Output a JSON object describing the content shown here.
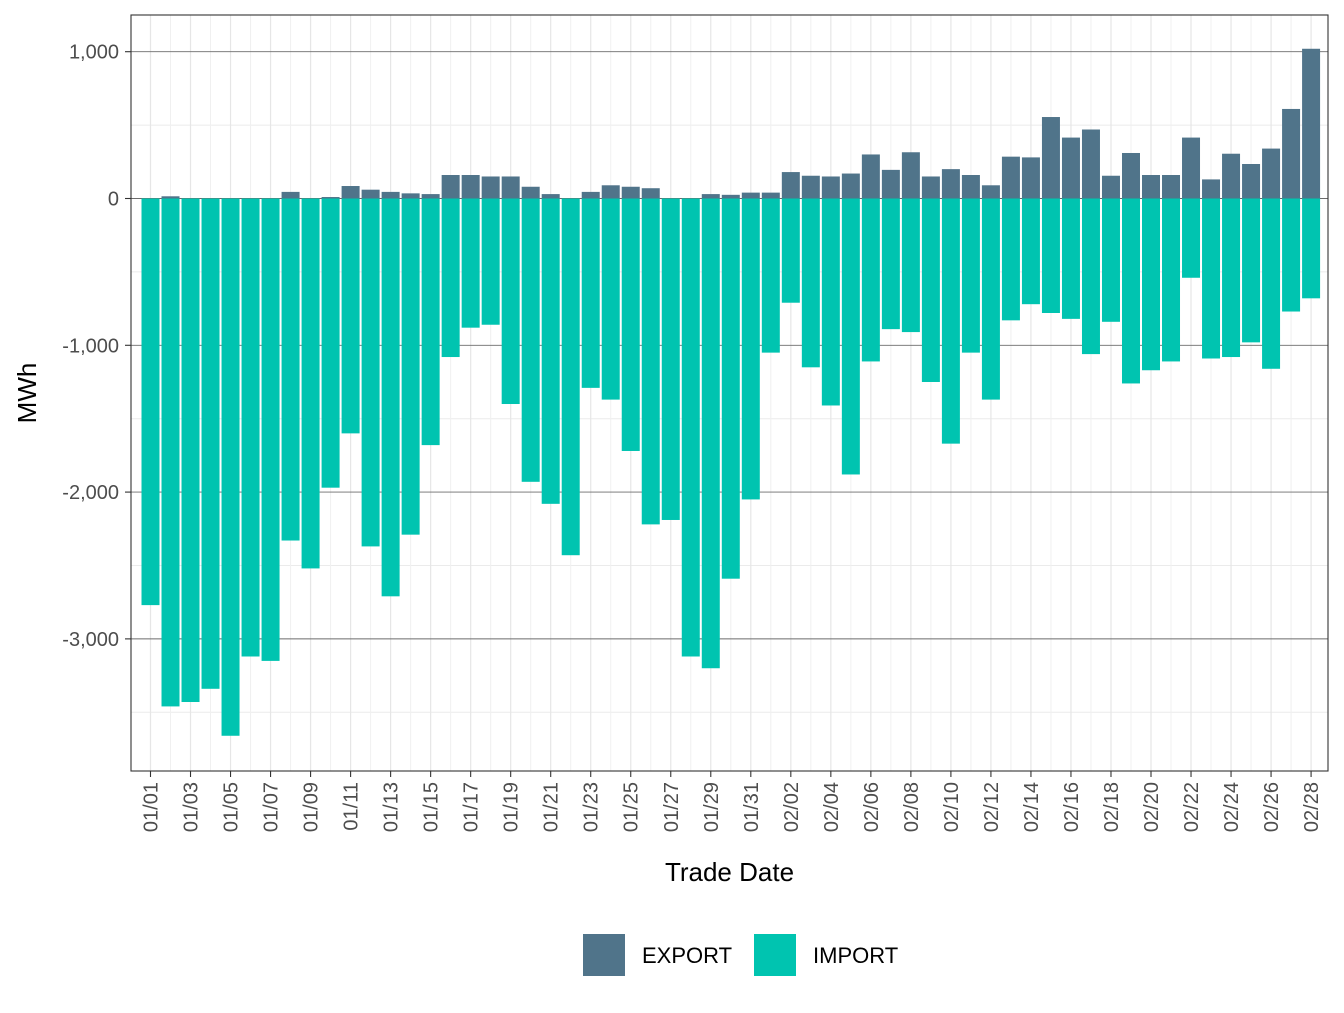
{
  "chart_data": {
    "type": "bar",
    "stacked": true,
    "title": "",
    "xlabel": "Trade Date",
    "ylabel": "MWh",
    "ylim": [
      -3900,
      1250
    ],
    "yticks": [
      1000,
      0,
      -1000,
      -2000,
      -3000
    ],
    "ytick_labels": [
      "1,000",
      "0",
      "-1,000",
      "-2,000",
      "-3,000"
    ],
    "grid": true,
    "legend_position": "bottom",
    "categories": [
      "01/01",
      "01/02",
      "01/03",
      "01/04",
      "01/05",
      "01/06",
      "01/07",
      "01/08",
      "01/09",
      "01/10",
      "01/11",
      "01/12",
      "01/13",
      "01/14",
      "01/15",
      "01/16",
      "01/17",
      "01/18",
      "01/19",
      "01/20",
      "01/21",
      "01/22",
      "01/23",
      "01/24",
      "01/25",
      "01/26",
      "01/27",
      "01/28",
      "01/29",
      "01/30",
      "01/31",
      "02/01",
      "02/02",
      "02/03",
      "02/04",
      "02/05",
      "02/06",
      "02/07",
      "02/08",
      "02/09",
      "02/10",
      "02/11",
      "02/12",
      "02/13",
      "02/14",
      "02/15",
      "02/16",
      "02/17",
      "02/18",
      "02/19",
      "02/20",
      "02/21",
      "02/22",
      "02/23",
      "02/24",
      "02/25",
      "02/26",
      "02/27",
      "02/28"
    ],
    "xtick_labels": [
      "01/01",
      "01/03",
      "01/05",
      "01/07",
      "01/09",
      "01/11",
      "01/13",
      "01/15",
      "01/17",
      "01/19",
      "01/21",
      "01/23",
      "01/25",
      "01/27",
      "01/29",
      "01/31",
      "02/02",
      "02/04",
      "02/06",
      "02/08",
      "02/10",
      "02/12",
      "02/14",
      "02/16",
      "02/18",
      "02/20",
      "02/22",
      "02/24",
      "02/26",
      "02/28"
    ],
    "series": [
      {
        "name": "EXPORT",
        "color": "#50748a",
        "values": [
          0,
          15,
          0,
          0,
          0,
          0,
          0,
          45,
          0,
          10,
          85,
          60,
          45,
          35,
          30,
          160,
          160,
          150,
          150,
          80,
          30,
          0,
          45,
          90,
          80,
          70,
          0,
          0,
          30,
          25,
          40,
          40,
          180,
          155,
          150,
          170,
          300,
          195,
          315,
          150,
          200,
          160,
          90,
          285,
          280,
          555,
          415,
          470,
          155,
          310,
          160,
          160,
          415,
          130,
          305,
          235,
          340,
          610,
          1020
        ]
      },
      {
        "name": "IMPORT",
        "color": "#00c4b0",
        "values": [
          -2770,
          -3460,
          -3430,
          -3340,
          -3660,
          -3120,
          -3150,
          -2330,
          -2520,
          -1970,
          -1600,
          -2370,
          -2710,
          -2290,
          -1680,
          -1080,
          -880,
          -860,
          -1400,
          -1930,
          -2080,
          -2430,
          -1290,
          -1370,
          -1720,
          -2220,
          -2190,
          -3120,
          -3200,
          -2590,
          -2050,
          -1050,
          -710,
          -1150,
          -1410,
          -1880,
          -1110,
          -890,
          -910,
          -1250,
          -1670,
          -1050,
          -1370,
          -830,
          -720,
          -780,
          -820,
          -1060,
          -840,
          -1260,
          -1170,
          -1110,
          -540,
          -1090,
          -1080,
          -980,
          -1160,
          -770,
          -680
        ]
      }
    ]
  }
}
